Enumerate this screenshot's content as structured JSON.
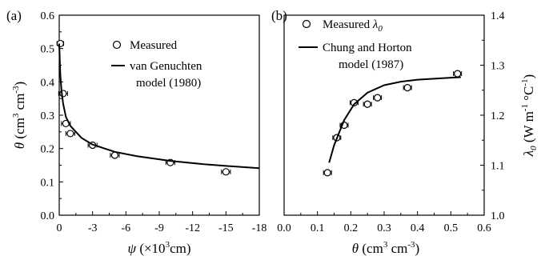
{
  "chart_data": [
    {
      "type": "scatter",
      "panel_label": "(a)",
      "xlabel": {
        "sym": "ψ",
        "pre": " (×10",
        "sup": "3",
        "post": "cm)"
      },
      "ylabel": {
        "sym": "θ",
        "pre": " (cm",
        "sup1": "3",
        "mid": " cm",
        "sup2": "-3",
        "post": ")"
      },
      "xlim": [
        0,
        -18
      ],
      "ylim": [
        0,
        0.6
      ],
      "xticks": [
        0,
        -3,
        -6,
        -9,
        -12,
        -15,
        -18
      ],
      "xtick_labels": [
        "0",
        "-3",
        "-6",
        "-9",
        "-12",
        "-15",
        "-18"
      ],
      "yticks": [
        0,
        0.1,
        0.2,
        0.3,
        0.4,
        0.5,
        0.6
      ],
      "ytick_labels": [
        "0.0",
        "0.1",
        "0.2",
        "0.3",
        "0.4",
        "0.5",
        "0.6"
      ],
      "legend": {
        "measured": "Measured",
        "model_line1": "van Genuchten",
        "model_line2": "model (1980)"
      },
      "series": [
        {
          "kind": "points",
          "x": [
            -0.1,
            -0.35,
            -0.6,
            -1.0,
            -3.0,
            -5.0,
            -10.0,
            -15.0
          ],
          "y": [
            0.515,
            0.365,
            0.275,
            0.245,
            0.21,
            0.18,
            0.158,
            0.13
          ],
          "xerr": [
            0.3,
            0.4,
            0.4,
            0.4,
            0.4,
            0.4,
            0.4,
            0.4
          ],
          "yerr": [
            0.005,
            0.008,
            0.01,
            0.01,
            0.01,
            0.008,
            0.007,
            0.006
          ]
        },
        {
          "kind": "line",
          "x": [
            0,
            -0.1,
            -0.2,
            -0.35,
            -0.6,
            -1.0,
            -2.0,
            -3.0,
            -5.0,
            -7.0,
            -10.0,
            -13.0,
            -15.0,
            -18.0
          ],
          "y": [
            0.515,
            0.42,
            0.375,
            0.335,
            0.295,
            0.268,
            0.232,
            0.212,
            0.19,
            0.177,
            0.163,
            0.153,
            0.148,
            0.141
          ]
        }
      ]
    },
    {
      "type": "scatter",
      "panel_label": "(b)",
      "xlabel": {
        "sym": "θ",
        "pre": " (cm",
        "sup1": "3",
        "mid": " cm",
        "sup2": "-3",
        "post": ")"
      },
      "ylabel": {
        "sym": "λ",
        "sub": "0",
        "pre": " (W m",
        "sup1": "-1",
        "mid": " °C",
        "sup2": "-1",
        "post": ")"
      },
      "xlim": [
        0,
        0.6
      ],
      "ylim": [
        1.0,
        1.4
      ],
      "xticks": [
        0,
        0.1,
        0.2,
        0.3,
        0.4,
        0.5,
        0.6
      ],
      "xtick_labels": [
        "0.0",
        "0.1",
        "0.2",
        "0.3",
        "0.4",
        "0.5",
        "0.6"
      ],
      "yticks": [
        1.0,
        1.1,
        1.2,
        1.3,
        1.4
      ],
      "ytick_labels": [
        "1.0",
        "1.1",
        "1.2",
        "1.3",
        "1.4"
      ],
      "legend": {
        "measured": "Measured",
        "measured_sym": "λ",
        "measured_sub": "0",
        "model_line1": "Chung and Horton",
        "model_line2": "model (1987)"
      },
      "series": [
        {
          "kind": "points",
          "x": [
            0.13,
            0.158,
            0.18,
            0.21,
            0.25,
            0.28,
            0.37,
            0.52
          ],
          "y": [
            1.085,
            1.155,
            1.18,
            1.225,
            1.222,
            1.235,
            1.255,
            1.283
          ],
          "xerr": [
            0.012,
            0.012,
            0.012,
            0.012,
            0.012,
            0.012,
            0.012,
            0.012
          ],
          "yerr": [
            0.004,
            0.005,
            0.005,
            0.005,
            0.005,
            0.005,
            0.004,
            0.005
          ]
        },
        {
          "kind": "line",
          "x": [
            0.135,
            0.15,
            0.18,
            0.21,
            0.25,
            0.3,
            0.35,
            0.4,
            0.45,
            0.5,
            0.53
          ],
          "y": [
            1.105,
            1.14,
            1.19,
            1.222,
            1.245,
            1.26,
            1.267,
            1.271,
            1.273,
            1.275,
            1.276
          ]
        }
      ]
    }
  ]
}
